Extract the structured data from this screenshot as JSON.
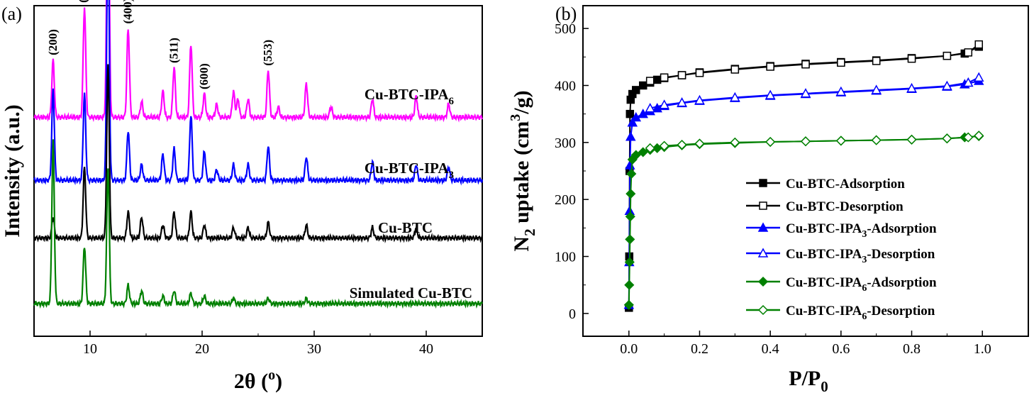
{
  "chart_data": [
    {
      "panel_label": "(a)",
      "type": "line",
      "xlabel_main": "2θ (",
      "xlabel_sup": "o",
      "xlabel_end": ")",
      "ylabel": "Intensity (a.u.)",
      "xlim": [
        5,
        45
      ],
      "x_ticks": [
        "10",
        "20",
        "30",
        "40"
      ],
      "y_ticks_shown": false,
      "peak_labels": [
        {
          "text": "(200)",
          "x": 6.7
        },
        {
          "text": "(220)",
          "x": 9.4
        },
        {
          "text": "(222)",
          "x": 11.6
        },
        {
          "text": "(400)",
          "x": 13.4
        },
        {
          "text": "(511)",
          "x": 17.5
        },
        {
          "text": "(600)",
          "x": 20.2
        },
        {
          "text": "(553)",
          "x": 25.9
        }
      ],
      "series": [
        {
          "name_main": "Cu-BTC-IPA",
          "name_sub": "6",
          "color": "#ff00ff",
          "offset": 0.71,
          "peaks": [
            [
              6.7,
              0.22
            ],
            [
              9.5,
              0.42
            ],
            [
              11.6,
              1.0
            ],
            [
              13.4,
              0.34
            ],
            [
              14.6,
              0.06
            ],
            [
              16.5,
              0.1
            ],
            [
              17.5,
              0.19
            ],
            [
              19.0,
              0.28
            ],
            [
              20.2,
              0.09
            ],
            [
              21.3,
              0.05
            ],
            [
              22.8,
              0.1
            ],
            [
              23.2,
              0.07
            ],
            [
              24.1,
              0.07
            ],
            [
              25.9,
              0.18
            ],
            [
              26.8,
              0.04
            ],
            [
              29.3,
              0.13
            ],
            [
              31.5,
              0.04
            ],
            [
              35.2,
              0.07
            ],
            [
              39.1,
              0.08
            ],
            [
              42.0,
              0.05
            ]
          ]
        },
        {
          "name_main": "Cu-BTC-IPA",
          "name_sub": "3",
          "color": "#0000ff",
          "offset": 0.47,
          "peaks": [
            [
              6.7,
              0.35
            ],
            [
              9.5,
              0.33
            ],
            [
              11.6,
              0.97
            ],
            [
              13.4,
              0.19
            ],
            [
              14.6,
              0.06
            ],
            [
              16.5,
              0.1
            ],
            [
              17.5,
              0.12
            ],
            [
              19.0,
              0.25
            ],
            [
              20.2,
              0.11
            ],
            [
              21.3,
              0.04
            ],
            [
              22.8,
              0.06
            ],
            [
              24.1,
              0.06
            ],
            [
              25.9,
              0.13
            ],
            [
              29.3,
              0.09
            ],
            [
              35.2,
              0.07
            ],
            [
              39.1,
              0.06
            ],
            [
              42.0,
              0.05
            ]
          ]
        },
        {
          "name_main": "Cu-BTC",
          "name_sub": "",
          "color": "#000000",
          "offset": 0.25,
          "peaks": [
            [
              6.7,
              0.08
            ],
            [
              9.5,
              0.27
            ],
            [
              11.6,
              0.66
            ],
            [
              13.4,
              0.1
            ],
            [
              14.6,
              0.08
            ],
            [
              16.5,
              0.05
            ],
            [
              17.5,
              0.1
            ],
            [
              19.0,
              0.1
            ],
            [
              20.2,
              0.05
            ],
            [
              22.8,
              0.04
            ],
            [
              24.1,
              0.04
            ],
            [
              25.9,
              0.06
            ],
            [
              29.3,
              0.05
            ],
            [
              35.2,
              0.04
            ],
            [
              39.1,
              0.04
            ]
          ]
        },
        {
          "name_main": "Simulated Cu-BTC",
          "name_sub": "",
          "color": "#008000",
          "offset": 0.0,
          "peaks": [
            [
              6.7,
              0.62
            ],
            [
              9.5,
              0.22
            ],
            [
              11.6,
              0.52
            ],
            [
              13.4,
              0.07
            ],
            [
              14.6,
              0.05
            ],
            [
              16.5,
              0.03
            ],
            [
              17.5,
              0.05
            ],
            [
              19.0,
              0.04
            ],
            [
              20.2,
              0.03
            ],
            [
              22.8,
              0.02
            ],
            [
              25.9,
              0.02
            ],
            [
              29.3,
              0.02
            ]
          ]
        }
      ]
    },
    {
      "panel_label": "(b)",
      "type": "line",
      "xlabel_main": "P/P",
      "xlabel_sub": "0",
      "ylabel_main": "N",
      "ylabel_sub": "2",
      "ylabel_mid": " uptake (cm",
      "ylabel_sup": "3",
      "ylabel_end": "/g)",
      "xlim": [
        -0.13,
        1.13
      ],
      "ylim": [
        -40,
        540
      ],
      "x_ticks": [
        "0.0",
        "0.2",
        "0.4",
        "0.6",
        "0.8",
        "1.0"
      ],
      "y_ticks": [
        "0",
        "100",
        "200",
        "300",
        "400",
        "500"
      ],
      "legend_position": "bottom-right",
      "series": [
        {
          "name_main": "Cu-BTC-Adsorption",
          "name_sub": "",
          "name_end": "",
          "color": "#000000",
          "marker": "square",
          "filled": true,
          "x": [
            0.0,
            0.001,
            0.002,
            0.003,
            0.005,
            0.01,
            0.02,
            0.04,
            0.06,
            0.08,
            0.1,
            0.15,
            0.2,
            0.3,
            0.4,
            0.5,
            0.6,
            0.7,
            0.8,
            0.9,
            0.95,
            0.99
          ],
          "y": [
            10,
            100,
            250,
            350,
            375,
            385,
            392,
            400,
            405,
            410,
            413,
            418,
            423,
            429,
            434,
            438,
            441,
            444,
            448,
            452,
            456,
            468
          ]
        },
        {
          "name_main": "Cu-BTC-Desorption",
          "name_sub": "",
          "name_end": "",
          "color": "#000000",
          "marker": "square",
          "filled": false,
          "x": [
            0.99,
            0.96,
            0.9,
            0.8,
            0.7,
            0.6,
            0.5,
            0.4,
            0.3,
            0.2,
            0.15,
            0.1,
            0.06
          ],
          "y": [
            472,
            458,
            452,
            447,
            443,
            440,
            437,
            433,
            428,
            422,
            418,
            414,
            408
          ]
        },
        {
          "name_main": "Cu-BTC-IPA",
          "name_sub": "3",
          "name_end": "-Adsorption",
          "color": "#0000ff",
          "marker": "triangle",
          "filled": true,
          "x": [
            0.0,
            0.001,
            0.002,
            0.003,
            0.005,
            0.01,
            0.02,
            0.04,
            0.06,
            0.08,
            0.1,
            0.15,
            0.2,
            0.3,
            0.4,
            0.5,
            0.6,
            0.7,
            0.8,
            0.9,
            0.95,
            0.99
          ],
          "y": [
            15,
            90,
            180,
            260,
            310,
            335,
            344,
            350,
            355,
            360,
            364,
            369,
            373,
            378,
            382,
            385,
            388,
            391,
            394,
            398,
            402,
            408
          ]
        },
        {
          "name_main": "Cu-BTC-IPA",
          "name_sub": "3",
          "name_end": "-Desorption",
          "color": "#0000ff",
          "marker": "triangle",
          "filled": false,
          "x": [
            0.99,
            0.96,
            0.9,
            0.8,
            0.7,
            0.6,
            0.5,
            0.4,
            0.3,
            0.2,
            0.15,
            0.1,
            0.06
          ],
          "y": [
            414,
            405,
            399,
            395,
            392,
            389,
            386,
            383,
            379,
            374,
            370,
            366,
            360
          ]
        },
        {
          "name_main": "Cu-BTC-IPA",
          "name_sub": "6",
          "name_end": "-Adsorption",
          "color": "#008000",
          "marker": "diamond",
          "filled": true,
          "x": [
            0.0,
            0.001,
            0.002,
            0.003,
            0.004,
            0.005,
            0.007,
            0.01,
            0.02,
            0.04,
            0.06,
            0.08,
            0.1,
            0.15,
            0.2,
            0.3,
            0.4,
            0.5,
            0.6,
            0.7,
            0.8,
            0.9,
            0.95,
            0.99
          ],
          "y": [
            15,
            50,
            90,
            130,
            170,
            210,
            245,
            270,
            278,
            283,
            287,
            290,
            292,
            295,
            297,
            299,
            301,
            302,
            303,
            304,
            305,
            307,
            309,
            311
          ]
        },
        {
          "name_main": "Cu-BTC-IPA",
          "name_sub": "6",
          "name_end": "-Desorption",
          "color": "#008000",
          "marker": "diamond",
          "filled": false,
          "x": [
            0.99,
            0.96,
            0.9,
            0.8,
            0.7,
            0.6,
            0.5,
            0.4,
            0.3,
            0.2,
            0.15,
            0.1,
            0.06
          ],
          "y": [
            312,
            309,
            307,
            305,
            304,
            303,
            302,
            301,
            300,
            298,
            296,
            294,
            290
          ]
        }
      ]
    }
  ]
}
